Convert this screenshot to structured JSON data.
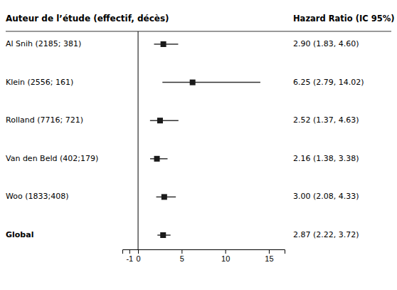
{
  "chart_data": {
    "type": "forest",
    "categories": [
      "Al Snih (2185; 381)",
      "Klein (2556; 161)",
      "Rolland (7716; 721)",
      "Van den Beld (402;179)",
      "Woo (1833;408)",
      "Global"
    ],
    "values": [
      2.9,
      6.25,
      2.52,
      2.16,
      3.0,
      2.87
    ],
    "ci_lo": [
      1.83,
      2.79,
      1.37,
      1.38,
      2.08,
      2.22
    ],
    "ci_hi": [
      4.6,
      14.02,
      4.63,
      3.38,
      4.33,
      3.72
    ],
    "value_labels": [
      "2.90 (1.83, 4.60)",
      "6.25 (2.79, 14.02)",
      "2.52 (1.37, 4.63)",
      "2.16 (1.38, 3.38)",
      "3.00 (2.08, 4.33)",
      "2.87 (2.22, 3.72)"
    ],
    "label_header": "Auteur de l’étude (effectif, décès)",
    "value_header": "Hazard Ratio (IC 95%)",
    "ref_x": 0,
    "xlim": [
      -1.8,
      16.8
    ],
    "xticks": [
      -1,
      0,
      5,
      10,
      15
    ]
  }
}
